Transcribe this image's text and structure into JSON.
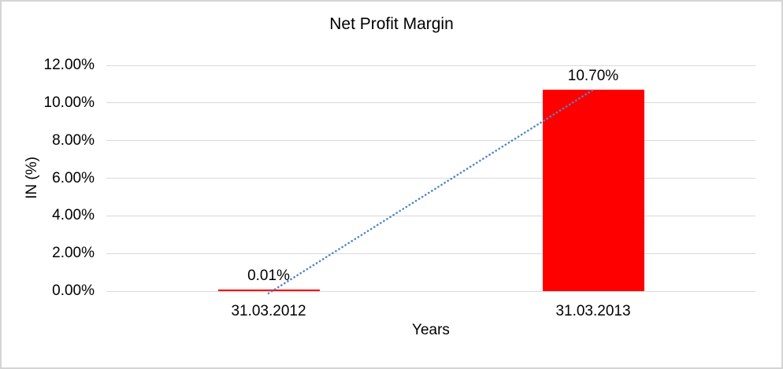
{
  "chart_data": {
    "type": "bar",
    "title": "Net Profit Margin",
    "xlabel": "Years",
    "ylabel": "IN (%)",
    "categories": [
      "31.03.2012",
      "31.03.2013"
    ],
    "series": [
      {
        "name": "Net Profit Margin",
        "values": [
          0.01,
          10.7
        ]
      }
    ],
    "data_labels": [
      "0.01%",
      "10.70%"
    ],
    "y_ticks": [
      {
        "value": 0,
        "label": "0.00%"
      },
      {
        "value": 2,
        "label": "2.00%"
      },
      {
        "value": 4,
        "label": "4.00%"
      },
      {
        "value": 6,
        "label": "6.00%"
      },
      {
        "value": 8,
        "label": "8.00%"
      },
      {
        "value": 10,
        "label": "10.00%"
      },
      {
        "value": 12,
        "label": "12.00%"
      }
    ],
    "ylim": [
      0,
      12
    ],
    "grid": true,
    "legend": "none",
    "colors": {
      "bar": "#FF0000",
      "trendline": "#4F87C7",
      "gridline": "#D9D9D9",
      "text": "#000000",
      "frame_border": "#D4D4D4"
    },
    "trendline": {
      "style": "dotted",
      "from_category_index": 0,
      "to_category_index": 1
    }
  }
}
